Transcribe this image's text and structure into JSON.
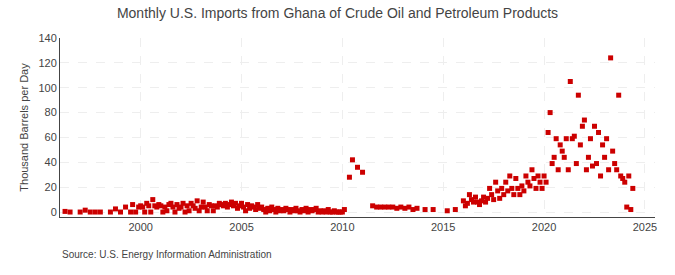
{
  "chart_data": {
    "type": "scatter",
    "title": "Monthly U.S. Imports from Ghana of Crude Oil and Petroleum Products",
    "ylabel": "Thousand Barrels per Day",
    "annotations": [
      "Source: U.S. Energy Information Administration"
    ],
    "color": "#cc0000",
    "marker": "square",
    "grid": true,
    "xlim": [
      1996.0,
      2025.5
    ],
    "ylim": [
      -4,
      140
    ],
    "xticks": [
      2000,
      2005,
      2010,
      2015,
      2020,
      2025
    ],
    "yticks": [
      0,
      20,
      40,
      60,
      80,
      100,
      120,
      140
    ],
    "x": [
      1996.25,
      1996.5,
      1997.0,
      1997.25,
      1997.5,
      1997.75,
      1998.0,
      1998.5,
      1998.75,
      1999.0,
      1999.25,
      1999.5,
      1999.6,
      1999.75,
      1999.9,
      2000.0,
      2000.1,
      2000.2,
      2000.3,
      2000.4,
      2000.5,
      2000.6,
      2000.7,
      2000.8,
      2000.9,
      2001.0,
      2001.1,
      2001.2,
      2001.3,
      2001.4,
      2001.5,
      2001.6,
      2001.7,
      2001.8,
      2001.9,
      2002.0,
      2002.1,
      2002.2,
      2002.3,
      2002.4,
      2002.5,
      2002.6,
      2002.7,
      2002.8,
      2002.9,
      2003.0,
      2003.1,
      2003.2,
      2003.3,
      2003.4,
      2003.5,
      2003.6,
      2003.7,
      2003.8,
      2003.9,
      2004.0,
      2004.1,
      2004.2,
      2004.3,
      2004.4,
      2004.5,
      2004.6,
      2004.7,
      2004.8,
      2004.9,
      2005.0,
      2005.1,
      2005.2,
      2005.3,
      2005.4,
      2005.5,
      2005.6,
      2005.7,
      2005.8,
      2005.9,
      2006.0,
      2006.1,
      2006.2,
      2006.3,
      2006.4,
      2006.5,
      2006.6,
      2006.7,
      2006.8,
      2006.9,
      2007.0,
      2007.1,
      2007.2,
      2007.3,
      2007.4,
      2007.5,
      2007.6,
      2007.7,
      2007.8,
      2007.9,
      2008.0,
      2008.1,
      2008.2,
      2008.3,
      2008.4,
      2008.5,
      2008.6,
      2008.7,
      2008.8,
      2008.9,
      2009.0,
      2009.1,
      2009.2,
      2009.3,
      2009.4,
      2009.5,
      2009.6,
      2009.7,
      2009.8,
      2009.9,
      2010.0,
      2010.1,
      2010.35,
      2010.5,
      2010.75,
      2011.0,
      2011.5,
      2011.7,
      2011.9,
      2012.1,
      2012.3,
      2012.5,
      2012.7,
      2012.9,
      2013.1,
      2013.3,
      2013.5,
      2013.7,
      2014.1,
      2014.5,
      2015.2,
      2015.6,
      2016.0,
      2016.1,
      2016.2,
      2016.3,
      2016.4,
      2016.5,
      2016.6,
      2016.7,
      2016.8,
      2016.9,
      2017.0,
      2017.1,
      2017.2,
      2017.3,
      2017.4,
      2017.5,
      2017.6,
      2017.7,
      2017.8,
      2017.9,
      2018.0,
      2018.1,
      2018.2,
      2018.3,
      2018.4,
      2018.5,
      2018.6,
      2018.7,
      2018.8,
      2018.9,
      2019.0,
      2019.1,
      2019.2,
      2019.3,
      2019.4,
      2019.5,
      2019.6,
      2019.7,
      2019.8,
      2019.9,
      2020.0,
      2020.1,
      2020.2,
      2020.3,
      2020.4,
      2020.5,
      2020.6,
      2020.7,
      2020.8,
      2020.9,
      2021.0,
      2021.1,
      2021.2,
      2021.3,
      2021.4,
      2021.5,
      2021.6,
      2021.7,
      2021.8,
      2021.9,
      2022.0,
      2022.1,
      2022.2,
      2022.3,
      2022.4,
      2022.5,
      2022.6,
      2022.7,
      2022.8,
      2022.9,
      2023.0,
      2023.1,
      2023.2,
      2023.3,
      2023.4,
      2023.5,
      2023.6,
      2023.7,
      2023.8,
      2023.9,
      2024.0,
      2024.1,
      2024.2,
      2024.3,
      2024.4
    ],
    "values": [
      0.5,
      0,
      0,
      1.5,
      0,
      0,
      0,
      0,
      2.5,
      0,
      4,
      0,
      6,
      0,
      4,
      5,
      4,
      0,
      7,
      5,
      0,
      10,
      5,
      4,
      6,
      5,
      0,
      4,
      1,
      6,
      7,
      4,
      0,
      6,
      3,
      4,
      7,
      0,
      5,
      1,
      7,
      5,
      3,
      9,
      1,
      4,
      8,
      4,
      1,
      6,
      5,
      1,
      5,
      4,
      7,
      6,
      5,
      7,
      4,
      6,
      8,
      5,
      7,
      3,
      5,
      7,
      4,
      1,
      6,
      3,
      5,
      4,
      2,
      6,
      3,
      4,
      2,
      0,
      3,
      1,
      4,
      2,
      0,
      3,
      1,
      2,
      1,
      3,
      2,
      0,
      2,
      1,
      3,
      1,
      0,
      2,
      1,
      3,
      0,
      2,
      1,
      2,
      3,
      0,
      1,
      0,
      1,
      0,
      2,
      0,
      0,
      1,
      0,
      0,
      0,
      0,
      2,
      28,
      42,
      36,
      32,
      5,
      4,
      4,
      4,
      4,
      4,
      3,
      4,
      3,
      4,
      2,
      3,
      2,
      2,
      1,
      2,
      9,
      5,
      7,
      14,
      10,
      8,
      12,
      8,
      6,
      9,
      12,
      8,
      11,
      19,
      14,
      10,
      24,
      17,
      11,
      19,
      14,
      24,
      17,
      29,
      19,
      14,
      27,
      19,
      14,
      21,
      17,
      29,
      24,
      21,
      34,
      27,
      19,
      29,
      24,
      19,
      29,
      24,
      64,
      80,
      39,
      44,
      59,
      34,
      54,
      49,
      44,
      59,
      34,
      105,
      59,
      61,
      39,
      94,
      54,
      69,
      74,
      34,
      44,
      59,
      37,
      69,
      39,
      64,
      29,
      54,
      44,
      59,
      34,
      124,
      49,
      39,
      34,
      94,
      29,
      27,
      24,
      4,
      29,
      2,
      19
    ]
  }
}
